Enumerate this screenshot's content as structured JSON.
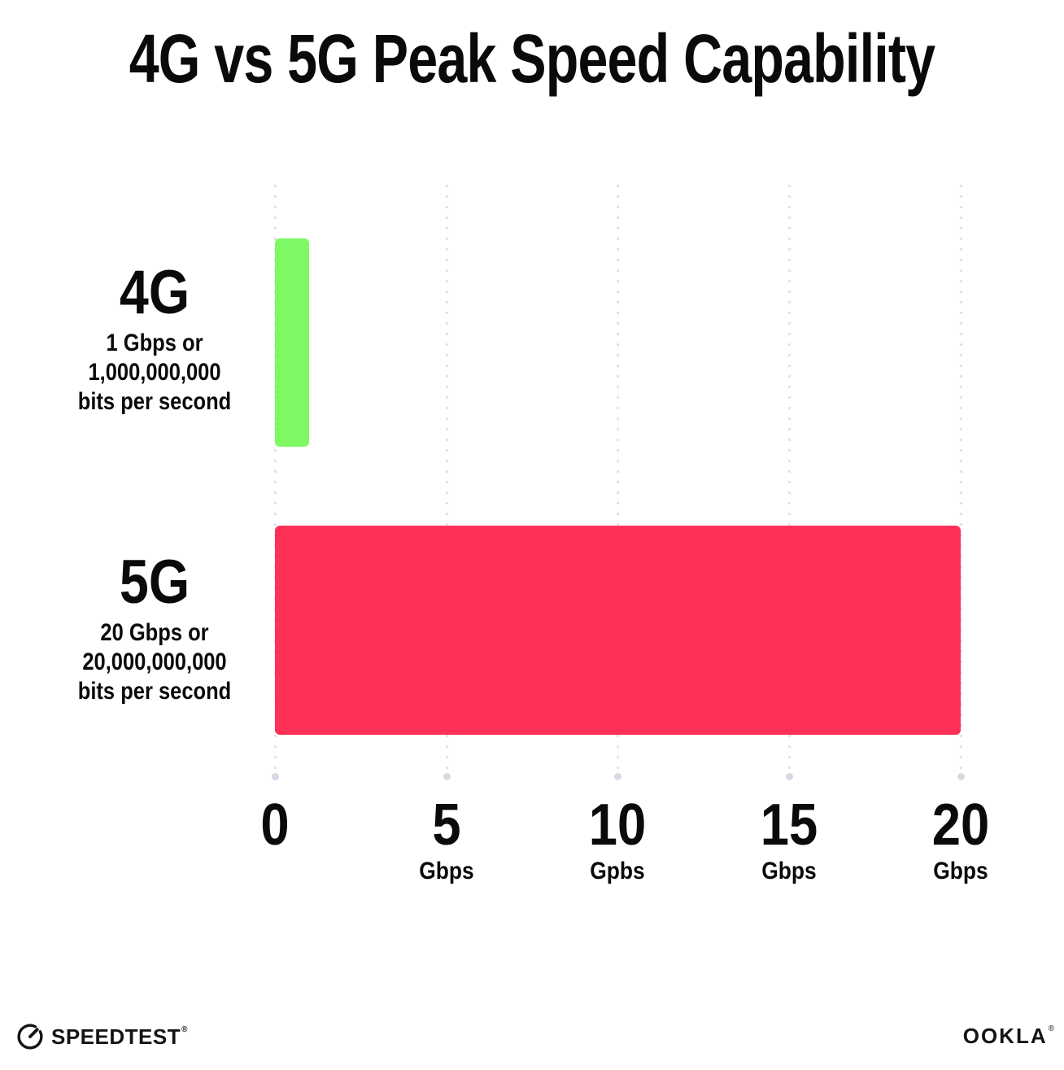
{
  "title": "4G vs 5G Peak Speed Capability",
  "chart_data": {
    "type": "bar",
    "orientation": "horizontal",
    "title": "4G vs 5G Peak Speed Capability",
    "categories": [
      "4G",
      "5G"
    ],
    "values": [
      1,
      20
    ],
    "value_unit": "Gbps",
    "xlim": [
      0,
      20
    ],
    "xticks": [
      0,
      5,
      10,
      15,
      20
    ],
    "colors": [
      "#7ef964",
      "#fd3058"
    ],
    "grid": "dotted-vertical-gridlines",
    "legend": "none",
    "annotations": [
      "4G: 1 Gbps or 1,000,000,000 bits per second",
      "5G: 20 Gbps or 20,000,000,000 bits per second"
    ]
  },
  "rows": [
    {
      "heading": "4G",
      "sub_line1": "1 Gbps or",
      "sub_line2": "1,000,000,000",
      "sub_line3": "bits per second"
    },
    {
      "heading": "5G",
      "sub_line1": "20 Gbps or",
      "sub_line2": "20,000,000,000",
      "sub_line3": "bits per second"
    }
  ],
  "x_axis": {
    "ticks": [
      {
        "number": "0",
        "unit": ""
      },
      {
        "number": "5",
        "unit": "Gbps"
      },
      {
        "number": "10",
        "unit": "Gpbs"
      },
      {
        "number": "15",
        "unit": "Gbps"
      },
      {
        "number": "20",
        "unit": "Gbps"
      }
    ]
  },
  "footer": {
    "speedtest_label": "SPEEDTEST",
    "speedtest_trademark": "®",
    "ookla_label": "OOKLA",
    "ookla_trademark": "®"
  }
}
